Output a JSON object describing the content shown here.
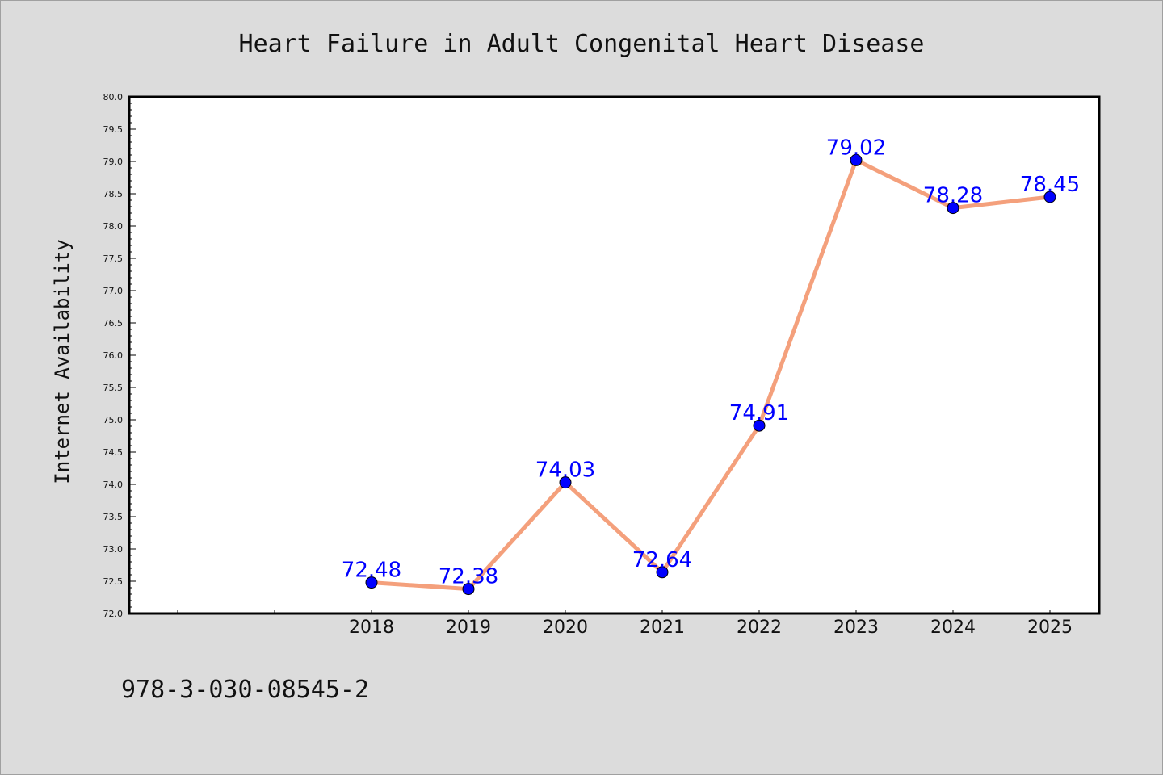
{
  "chart_data": {
    "type": "line",
    "title": "Heart Failure in Adult Congenital Heart Disease",
    "xlabel": "",
    "ylabel": "Internet Availability",
    "categories": [
      "2018",
      "2019",
      "2020",
      "2021",
      "2022",
      "2023",
      "2024",
      "2025"
    ],
    "series": [
      {
        "values": [
          72.48,
          72.38,
          74.03,
          72.64,
          74.91,
          79.02,
          78.28,
          78.45
        ],
        "data_labels": [
          "72.48",
          "72.38",
          "74.03",
          "72.64",
          "74.91",
          "79.02",
          "78.28",
          "78.45"
        ]
      }
    ],
    "ylim": [
      72.0,
      80.0
    ],
    "yticks": [
      "72.0",
      "72.5",
      "73.0",
      "73.5",
      "74.0",
      "74.5",
      "75.0",
      "75.5",
      "76.0",
      "76.5",
      "77.0",
      "77.5",
      "78.0",
      "78.5",
      "79.0",
      "79.5",
      "80.0"
    ],
    "grid": false,
    "colors": {
      "line": "#f4a07c",
      "marker": "#0000ff",
      "labels": "#0000ff"
    }
  },
  "footer": {
    "code": "978-3-030-08545-2"
  }
}
